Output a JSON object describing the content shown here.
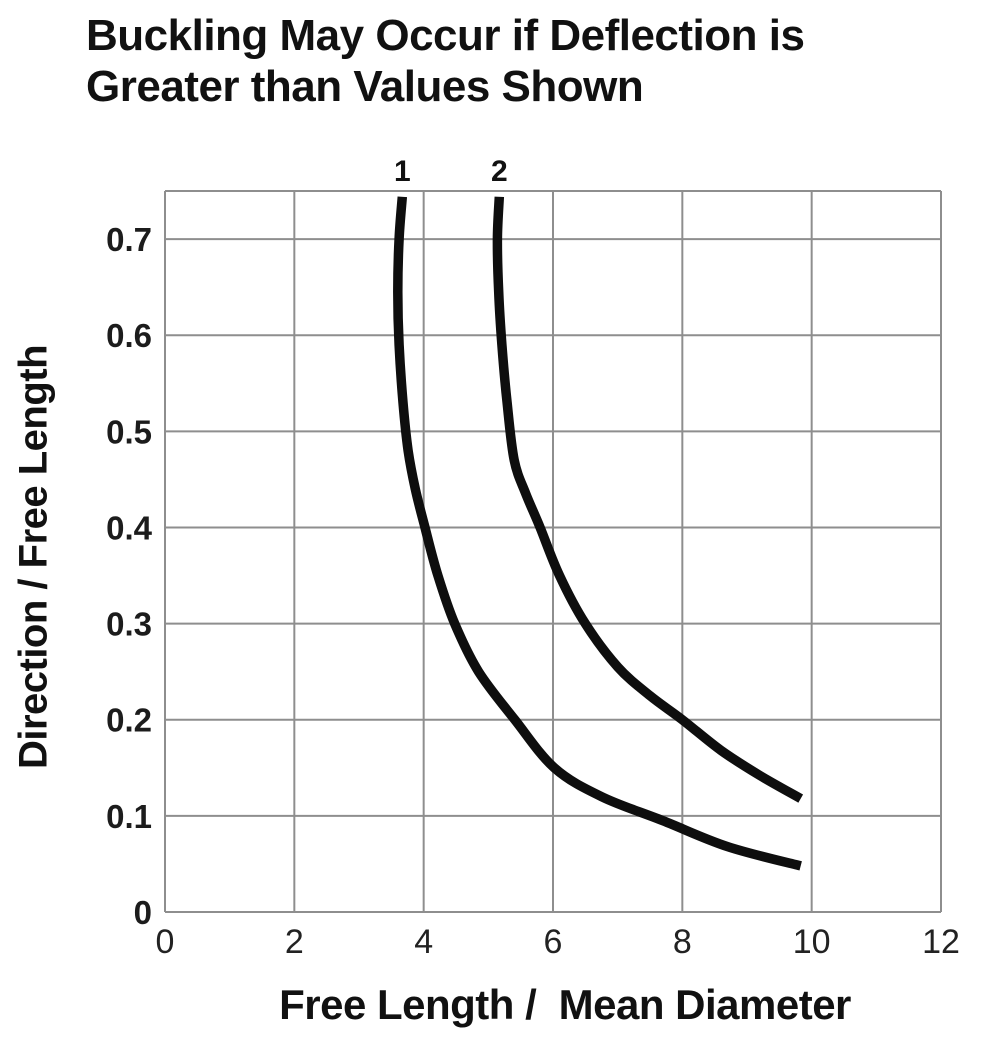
{
  "title": {
    "lines": [
      "Buckling May Occur if Deflection is",
      "Greater than Values Shown"
    ]
  },
  "chart_data": {
    "type": "line",
    "title": "Buckling May Occur if Deflection is Greater than Values Shown",
    "xlabel": "Free Length /  Mean Diameter",
    "ylabel": "Direction / Free Length",
    "xlim": [
      0,
      12
    ],
    "ylim": [
      0,
      0.75
    ],
    "grid": true,
    "legend_position": "none",
    "x_ticks": [
      0,
      2,
      4,
      6,
      8,
      10,
      12
    ],
    "x_tick_labels": [
      "0",
      "2",
      "4",
      "6",
      "8",
      "10",
      "12"
    ],
    "y_ticks": [
      0,
      0.1,
      0.2,
      0.3,
      0.4,
      0.5,
      0.6,
      0.7
    ],
    "y_tick_labels": [
      "0",
      "0.1",
      "0.2",
      "0.3",
      "0.4",
      "0.5",
      "0.6",
      "0.7"
    ],
    "colors": {
      "curve": "#0e0e0e",
      "grid": "#8e8e8e",
      "text": "#111111",
      "background": "#ffffff"
    },
    "series": [
      {
        "name": "1",
        "label": "1",
        "points": [
          [
            3.67,
            0.744
          ],
          [
            3.62,
            0.7
          ],
          [
            3.6,
            0.645
          ],
          [
            3.62,
            0.59
          ],
          [
            3.68,
            0.53
          ],
          [
            3.76,
            0.48
          ],
          [
            3.87,
            0.44
          ],
          [
            4.02,
            0.4
          ],
          [
            4.22,
            0.35
          ],
          [
            4.48,
            0.3
          ],
          [
            4.85,
            0.25
          ],
          [
            5.41,
            0.2
          ],
          [
            6.02,
            0.15
          ],
          [
            6.75,
            0.12
          ],
          [
            7.7,
            0.095
          ],
          [
            8.7,
            0.068
          ],
          [
            9.83,
            0.048
          ]
        ]
      },
      {
        "name": "2",
        "label": "2",
        "points": [
          [
            5.17,
            0.744
          ],
          [
            5.14,
            0.7
          ],
          [
            5.16,
            0.645
          ],
          [
            5.21,
            0.59
          ],
          [
            5.29,
            0.53
          ],
          [
            5.4,
            0.47
          ],
          [
            5.58,
            0.435
          ],
          [
            5.8,
            0.4
          ],
          [
            6.1,
            0.35
          ],
          [
            6.5,
            0.3
          ],
          [
            7.0,
            0.255
          ],
          [
            7.5,
            0.225
          ],
          [
            8.0,
            0.2
          ],
          [
            8.6,
            0.168
          ],
          [
            9.2,
            0.142
          ],
          [
            9.83,
            0.118
          ]
        ]
      }
    ]
  }
}
